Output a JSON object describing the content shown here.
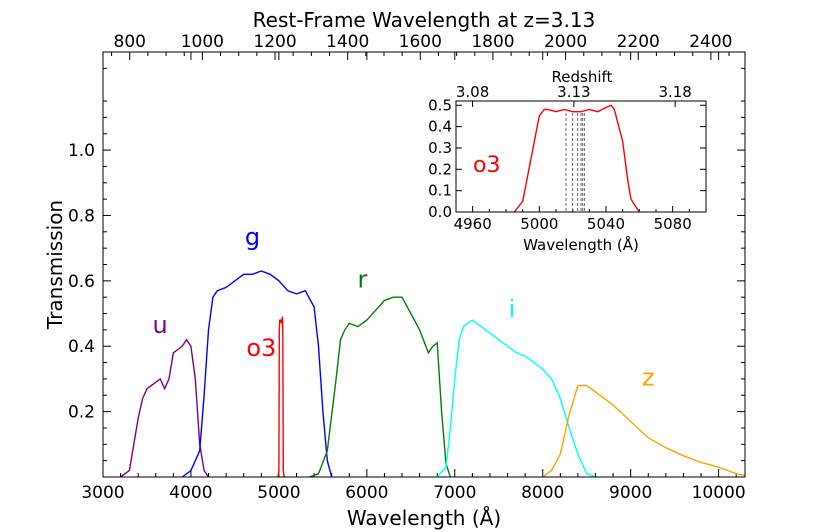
{
  "chart_data": [
    {
      "type": "line",
      "xlabel": "Wavelength (Å)",
      "ylabel": "Transmission",
      "top_xlabel": "Rest-Frame Wavelength at z=3.13",
      "xlim": [
        3000,
        10300
      ],
      "ylim": [
        0,
        1.3
      ],
      "xticks": [
        "3000",
        "4000",
        "5000",
        "6000",
        "7000",
        "8000",
        "9000",
        "10000"
      ],
      "yticks": [
        "0.2",
        "0.4",
        "0.6",
        "0.8",
        "1.0"
      ],
      "top_ticks": [
        "800",
        "1000",
        "1200",
        "1400",
        "1600",
        "1800",
        "2000",
        "2200",
        "2400"
      ],
      "series": [
        {
          "name": "u",
          "color": "#800080",
          "label_x": 3650,
          "label_y": 0.44,
          "x": [
            3200,
            3300,
            3350,
            3400,
            3450,
            3500,
            3550,
            3600,
            3650,
            3700,
            3750,
            3800,
            3850,
            3900,
            3950,
            4000,
            4050,
            4100,
            4150,
            4200
          ],
          "y": [
            0.0,
            0.02,
            0.1,
            0.18,
            0.24,
            0.27,
            0.28,
            0.29,
            0.3,
            0.27,
            0.3,
            0.38,
            0.39,
            0.4,
            0.42,
            0.4,
            0.3,
            0.1,
            0.02,
            0.0
          ]
        },
        {
          "name": "g",
          "color": "#0000ff",
          "label_x": 4700,
          "label_y": 0.71,
          "x": [
            3900,
            4000,
            4100,
            4150,
            4200,
            4250,
            4300,
            4400,
            4500,
            4600,
            4700,
            4800,
            4900,
            5000,
            5100,
            5200,
            5300,
            5400,
            5450,
            5500,
            5550,
            5600
          ],
          "y": [
            0.0,
            0.02,
            0.08,
            0.25,
            0.45,
            0.55,
            0.57,
            0.58,
            0.6,
            0.62,
            0.62,
            0.63,
            0.62,
            0.6,
            0.57,
            0.56,
            0.57,
            0.52,
            0.4,
            0.2,
            0.05,
            0.0
          ]
        },
        {
          "name": "o3",
          "color": "#ff0000",
          "label_x": 4800,
          "label_y": 0.37,
          "x": [
            4990,
            5000,
            5005,
            5010,
            5020,
            5030,
            5040,
            5045,
            5050,
            5060
          ],
          "y": [
            0.0,
            0.02,
            0.45,
            0.48,
            0.48,
            0.47,
            0.49,
            0.45,
            0.02,
            0.0
          ]
        },
        {
          "name": "r",
          "color": "#008000",
          "label_x": 5950,
          "label_y": 0.58,
          "x": [
            5350,
            5450,
            5550,
            5650,
            5700,
            5750,
            5800,
            5900,
            6000,
            6100,
            6200,
            6300,
            6400,
            6500,
            6600,
            6700,
            6750,
            6800,
            6850,
            6900,
            6950
          ],
          "y": [
            0.0,
            0.01,
            0.08,
            0.3,
            0.42,
            0.45,
            0.47,
            0.46,
            0.48,
            0.51,
            0.54,
            0.55,
            0.55,
            0.5,
            0.45,
            0.38,
            0.4,
            0.41,
            0.2,
            0.04,
            0.0
          ]
        },
        {
          "name": "i",
          "color": "#00ffff",
          "label_x": 7650,
          "label_y": 0.49,
          "x": [
            6800,
            6900,
            6950,
            7000,
            7050,
            7100,
            7200,
            7300,
            7400,
            7500,
            7600,
            7700,
            7800,
            7900,
            8000,
            8100,
            8200,
            8300,
            8400,
            8500,
            8600
          ],
          "y": [
            0.0,
            0.03,
            0.15,
            0.3,
            0.42,
            0.46,
            0.48,
            0.46,
            0.44,
            0.42,
            0.4,
            0.38,
            0.37,
            0.35,
            0.33,
            0.3,
            0.24,
            0.15,
            0.07,
            0.01,
            0.0
          ]
        },
        {
          "name": "z",
          "color": "#ffa500",
          "label_x": 9200,
          "label_y": 0.28,
          "x": [
            8000,
            8100,
            8200,
            8300,
            8400,
            8500,
            8600,
            8700,
            8800,
            9000,
            9200,
            9400,
            9600,
            9800,
            10000,
            10200,
            10300
          ],
          "y": [
            0.0,
            0.02,
            0.07,
            0.19,
            0.28,
            0.28,
            0.26,
            0.24,
            0.22,
            0.17,
            0.12,
            0.09,
            0.065,
            0.045,
            0.03,
            0.01,
            0.005
          ]
        }
      ]
    },
    {
      "type": "line",
      "name": "inset",
      "xlabel": "Wavelength (Å)",
      "top_xlabel": "Redshift",
      "xlim": [
        4950,
        5100
      ],
      "ylim": [
        0,
        0.52
      ],
      "xticks": [
        "4960",
        "5000",
        "5040",
        "5080"
      ],
      "yticks": [
        "0.0",
        "0.1",
        "0.2",
        "0.3",
        "0.4",
        "0.5"
      ],
      "top_ticks": [
        "3.08",
        "3.13",
        "3.18"
      ],
      "label": "o3",
      "vlines": [
        5016,
        5020,
        5023,
        5025,
        5026,
        5027
      ],
      "series": [
        {
          "name": "o3",
          "color": "#ff0000",
          "x": [
            4985,
            4990,
            4995,
            5000,
            5003,
            5005,
            5010,
            5015,
            5020,
            5025,
            5030,
            5035,
            5040,
            5043,
            5045,
            5050,
            5053,
            5055,
            5060
          ],
          "y": [
            0.0,
            0.05,
            0.25,
            0.45,
            0.48,
            0.48,
            0.47,
            0.48,
            0.47,
            0.47,
            0.48,
            0.47,
            0.49,
            0.5,
            0.48,
            0.33,
            0.15,
            0.06,
            0.0
          ]
        }
      ]
    }
  ]
}
